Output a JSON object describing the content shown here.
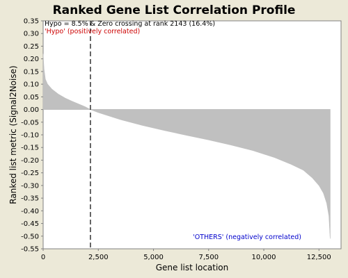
{
  "chart_data": {
    "type": "area",
    "title": "Ranked Gene List Correlation Profile",
    "xlabel": "Gene list location",
    "ylabel": "Ranked list metric (Signal2Noise)",
    "xlim": [
      0,
      13500
    ],
    "ylim": [
      -0.55,
      0.35
    ],
    "x_ticks": [
      0,
      2500,
      5000,
      7500,
      10000,
      12500
    ],
    "x_tick_labels": [
      "0",
      "2,500",
      "5,000",
      "7,500",
      "10,000",
      "12,500"
    ],
    "y_ticks": [
      0.35,
      0.3,
      0.25,
      0.2,
      0.15,
      0.1,
      0.05,
      0.0,
      -0.05,
      -0.1,
      -0.15,
      -0.2,
      -0.25,
      -0.3,
      -0.35,
      -0.4,
      -0.45,
      -0.5,
      -0.55
    ],
    "y_tick_labels": [
      "0.35",
      "0.30",
      "0.25",
      "0.20",
      "0.15",
      "0.10",
      "0.05",
      "0.00",
      "-0.05",
      "-0.10",
      "-0.15",
      "-0.20",
      "-0.25",
      "-0.30",
      "-0.35",
      "-0.40",
      "-0.45",
      "-0.50",
      "-0.55"
    ],
    "grid": false,
    "series": [
      {
        "x": [
          0,
          40,
          100,
          200,
          400,
          700,
          1000,
          1300,
          1600,
          1900,
          2143,
          2500,
          3500,
          4500,
          5500,
          6500,
          7500,
          8500,
          9500,
          10500,
          11200,
          11800,
          12200,
          12500,
          12700,
          12850,
          12950,
          13000,
          13010
        ],
        "y": [
          0.22,
          0.16,
          0.12,
          0.1,
          0.08,
          0.06,
          0.045,
          0.033,
          0.022,
          0.011,
          0.0,
          -0.012,
          -0.04,
          -0.063,
          -0.083,
          -0.102,
          -0.12,
          -0.14,
          -0.162,
          -0.19,
          -0.215,
          -0.24,
          -0.27,
          -0.3,
          -0.33,
          -0.37,
          -0.42,
          -0.5,
          -0.51
        ],
        "color": "#C0C0C0"
      }
    ],
    "zero_crossing": {
      "x": 2143,
      "label": "Hypo = 8.5% & Zero crossing at rank 2143 (16.4%)"
    },
    "annotations": [
      {
        "text": "'Hypo' (positively correlated)",
        "color": "#CC0000"
      },
      {
        "text": "'OTHERS' (negatively correlated)",
        "color": "#0000CC"
      }
    ]
  },
  "colors": {
    "background": "#ECE9D8",
    "plot_background": "#FFFFFF",
    "fill": "#C0C0C0",
    "positive_annotation": "#CC0000",
    "negative_annotation": "#0000CC"
  }
}
